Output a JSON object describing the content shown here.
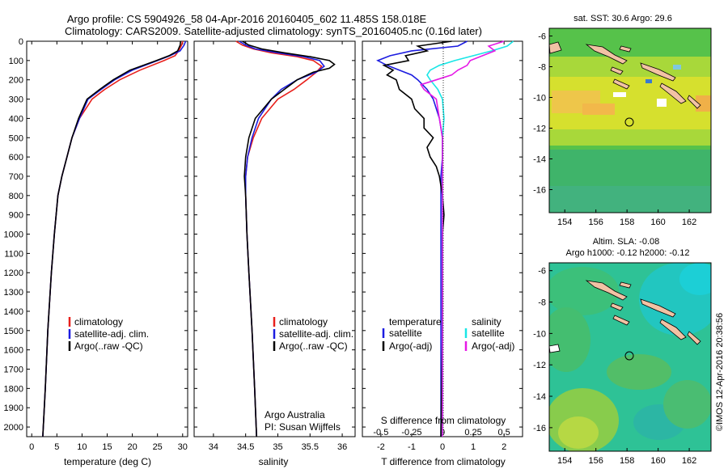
{
  "titles": {
    "line1": "Argo profile: CS 5904926_58 04-Apr-2016 20160405_602 11.485S 158.018E",
    "line2": "Climatology: CARS2009. Satellite-adjusted climatology: synTS_20160405.nc (0.16d later)"
  },
  "map_titles": {
    "sst": "sat. SST: 30.6 Argo: 29.6",
    "sla_line1": "Altim. SLA: -0.08",
    "sla_line2": "Argo h1000: -0.12 h2000: -0.12"
  },
  "credit": {
    "line1": "Argo Australia",
    "line2": "PI: Susan Wijffels"
  },
  "stamp": "©IMOS 12-Apr-2016 20:38:56",
  "legend": {
    "climatology": "climatology",
    "satellite_adj": "satellite-adj. clim.",
    "argo_raw": "Argo(..raw -QC)",
    "temperature_header": "temperature",
    "salinity_header": "salinity",
    "satellite": "satellite",
    "argo_adj": "Argo(-adj)"
  },
  "colors": {
    "climatology": "#e8201c",
    "satellite": "#1c1ce0",
    "argo": "#000000",
    "sal_satellite": "#19e6e6",
    "sal_argo": "#e619e6"
  },
  "chart_data": [
    {
      "type": "line",
      "name": "temperature-profile",
      "xlabel": "temperature (deg C)",
      "ylabel": "depth",
      "xlim": [
        -1,
        31
      ],
      "ylim": [
        2050,
        0
      ],
      "xticks": [
        0,
        5,
        10,
        15,
        20,
        25,
        30
      ],
      "yticks": [
        0,
        100,
        200,
        300,
        400,
        500,
        600,
        700,
        800,
        900,
        1000,
        1100,
        1200,
        1300,
        1400,
        1500,
        1600,
        1700,
        1800,
        1900,
        2000
      ],
      "series": [
        {
          "name": "climatology",
          "color_key": "climatology",
          "depth": [
            0,
            20,
            50,
            75,
            100,
            150,
            200,
            250,
            300,
            400,
            500,
            600,
            700,
            800,
            1000,
            1200,
            1500,
            1800,
            2050
          ],
          "values": [
            30,
            29.8,
            29.2,
            28.5,
            26.3,
            21.5,
            17.5,
            14.5,
            12,
            9.5,
            8,
            7,
            6,
            5.2,
            4.5,
            3.9,
            3.2,
            2.7,
            2.2
          ]
        },
        {
          "name": "satellite-adj. clim.",
          "color_key": "satellite",
          "depth": [
            0,
            20,
            50,
            75,
            100,
            150,
            200,
            250,
            300,
            400,
            500,
            600,
            700,
            800,
            1000,
            1200,
            1500,
            1800,
            2050
          ],
          "values": [
            30.6,
            30.3,
            29.5,
            27.5,
            25,
            20,
            16.5,
            13.8,
            11.2,
            9.5,
            8,
            7,
            6,
            5.2,
            4.5,
            3.9,
            3.2,
            2.7,
            2.2
          ]
        },
        {
          "name": "Argo(..raw -QC)",
          "color_key": "argo",
          "depth": [
            0,
            20,
            50,
            75,
            100,
            150,
            200,
            250,
            300,
            400,
            500,
            600,
            700,
            800,
            1000,
            1200,
            1500,
            1800,
            2050
          ],
          "values": [
            29.6,
            29.5,
            29,
            27.3,
            24.8,
            19.5,
            16.2,
            13.5,
            11,
            9.3,
            8,
            7,
            6,
            5.2,
            4.5,
            3.9,
            3.2,
            2.7,
            2.2
          ]
        }
      ]
    },
    {
      "type": "line",
      "name": "salinity-profile",
      "xlabel": "salinity",
      "ylabel": "depth",
      "xlim": [
        33.7,
        36.2
      ],
      "ylim": [
        2050,
        0
      ],
      "xticks": [
        34,
        34.5,
        35,
        35.5,
        36
      ],
      "yticks": [
        0,
        100,
        200,
        300,
        400,
        500,
        600,
        700,
        800,
        900,
        1000,
        1100,
        1200,
        1300,
        1400,
        1500,
        1600,
        1700,
        1800,
        1900,
        2000
      ],
      "series": [
        {
          "name": "climatology",
          "color_key": "climatology",
          "depth": [
            0,
            20,
            40,
            60,
            80,
            100,
            130,
            160,
            200,
            250,
            300,
            400,
            500,
            600,
            700,
            800,
            1000,
            1200,
            1500,
            1800,
            2050
          ],
          "values": [
            34.35,
            34.45,
            34.62,
            34.9,
            35.3,
            35.55,
            35.68,
            35.6,
            35.45,
            35.25,
            35.0,
            34.75,
            34.62,
            34.53,
            34.5,
            34.5,
            34.52,
            34.55,
            34.6,
            34.64,
            34.67
          ]
        },
        {
          "name": "satellite-adj. clim.",
          "color_key": "satellite",
          "depth": [
            0,
            20,
            40,
            60,
            80,
            100,
            130,
            160,
            200,
            250,
            300,
            400,
            500,
            600,
            700,
            800,
            1000,
            1200,
            1500,
            1800,
            2050
          ],
          "values": [
            34.4,
            34.5,
            34.65,
            35.0,
            35.4,
            35.65,
            35.72,
            35.6,
            35.3,
            35.05,
            34.9,
            34.7,
            34.6,
            34.53,
            34.5,
            34.5,
            34.52,
            34.55,
            34.6,
            34.64,
            34.67
          ]
        },
        {
          "name": "Argo(..raw -QC)",
          "color_key": "argo",
          "depth": [
            0,
            20,
            40,
            60,
            80,
            100,
            120,
            140,
            160,
            200,
            250,
            300,
            400,
            500,
            600,
            700,
            800,
            1000,
            1200,
            1500,
            1800,
            2050
          ],
          "values": [
            34.45,
            34.55,
            34.75,
            35.1,
            35.5,
            35.8,
            35.88,
            35.8,
            35.55,
            35.3,
            35.1,
            34.9,
            34.65,
            34.55,
            34.5,
            34.48,
            34.5,
            34.52,
            34.55,
            34.6,
            34.64,
            34.67
          ]
        }
      ]
    },
    {
      "type": "line",
      "name": "difference-profile",
      "xlabel": "T difference from climatology",
      "xlabel_top": "S difference from climatology",
      "ylabel": "depth",
      "xlim": [
        -2.6,
        2.6
      ],
      "ylim": [
        2050,
        0
      ],
      "xticks": [
        -2,
        -1,
        0,
        1,
        2
      ],
      "xticks_s": [
        "-0.5",
        "-0.25",
        "0",
        "0.25",
        "0.5"
      ],
      "xticks_s_values": [
        -2,
        -1,
        0,
        1,
        2
      ],
      "yticks": [
        0,
        100,
        200,
        300,
        400,
        500,
        600,
        700,
        800,
        900,
        1000,
        1100,
        1200,
        1300,
        1400,
        1500,
        1600,
        1700,
        1800,
        1900,
        2000
      ],
      "series": [
        {
          "name": "temperature satellite",
          "color_key": "satellite",
          "depth": [
            0,
            25,
            50,
            75,
            100,
            125,
            150,
            175,
            200,
            250,
            300,
            400,
            500,
            600,
            700,
            800,
            1000,
            1500,
            2050
          ],
          "values": [
            0.8,
            0.5,
            -1.0,
            -1.7,
            -2.1,
            -1.8,
            -1.4,
            -1.0,
            -0.8,
            -0.5,
            -0.3,
            -0.1,
            0.0,
            0.0,
            -0.05,
            -0.05,
            -0.05,
            -0.05,
            -0.05
          ]
        },
        {
          "name": "temperature Argo(-adj)",
          "color_key": "argo",
          "depth": [
            0,
            25,
            50,
            75,
            100,
            125,
            150,
            175,
            200,
            250,
            300,
            350,
            400,
            450,
            500,
            550,
            600,
            650,
            700,
            800,
            900,
            1000,
            1500,
            2050
          ],
          "values": [
            0.3,
            -0.8,
            -0.5,
            -1.2,
            -1.1,
            -1.9,
            -1.6,
            -1.8,
            -1.5,
            -1.4,
            -1.0,
            -0.9,
            -0.6,
            -0.6,
            -0.3,
            -0.5,
            -0.4,
            -0.2,
            -0.1,
            0.0,
            0.05,
            0.0,
            0.0,
            -0.05
          ]
        },
        {
          "name": "salinity satellite",
          "color_key": "sal_satellite",
          "depth": [
            0,
            25,
            50,
            75,
            100,
            125,
            150,
            175,
            200,
            250,
            300,
            400,
            500,
            600,
            700,
            800,
            1000,
            1500,
            2050
          ],
          "values": [
            2.3,
            2.1,
            1.6,
            1.0,
            0.4,
            -0.1,
            -0.4,
            -0.5,
            -0.4,
            -0.15,
            0.0,
            0.05,
            0.0,
            0.0,
            0.0,
            0.0,
            0.0,
            0.0,
            0.0
          ]
        },
        {
          "name": "salinity Argo(-adj)",
          "color_key": "sal_argo",
          "depth": [
            0,
            25,
            50,
            75,
            100,
            125,
            150,
            175,
            200,
            225,
            250,
            300,
            350,
            400,
            500,
            600,
            700,
            800,
            1000,
            1500,
            2050
          ],
          "values": [
            2.0,
            1.5,
            1.7,
            1.3,
            0.9,
            0.8,
            0.5,
            0.3,
            -0.2,
            -0.7,
            -0.6,
            -0.2,
            -0.15,
            -0.1,
            0.0,
            0.0,
            0.0,
            0.0,
            0.0,
            0.0,
            0.0
          ]
        }
      ]
    },
    {
      "type": "heatmap",
      "name": "sst-map",
      "title": "sat. SST: 30.6 Argo: 29.6",
      "xlim": [
        153,
        163.4
      ],
      "ylim": [
        -17.5,
        -5.5
      ],
      "xticks": [
        154,
        156,
        158,
        160,
        162
      ],
      "yticks": [
        -6,
        -8,
        -10,
        -12,
        -14,
        -16
      ],
      "float_position": {
        "lon": 158.018,
        "lat": -11.485
      }
    },
    {
      "type": "heatmap",
      "name": "sla-map",
      "title": "Altim. SLA: -0.08",
      "xlim": [
        153,
        163.4
      ],
      "ylim": [
        -17.5,
        -5.5
      ],
      "xticks": [
        154,
        156,
        158,
        160,
        162
      ],
      "yticks": [
        -6,
        -8,
        -10,
        -12,
        -14,
        -16
      ],
      "float_position": {
        "lon": 158.018,
        "lat": -11.485
      }
    }
  ]
}
